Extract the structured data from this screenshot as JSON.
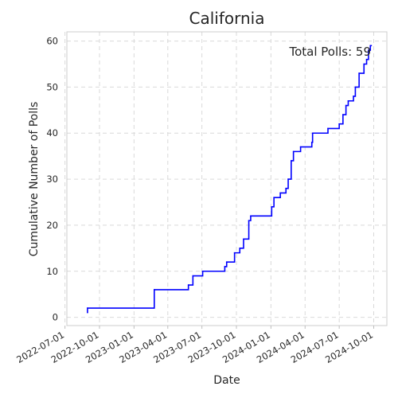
{
  "chart_data": {
    "type": "line",
    "step": true,
    "title": "California",
    "xlabel": "Date",
    "ylabel": "Cumulative Number of Polls",
    "annotation": "Total Polls: 59",
    "x_ticks": [
      "2022-07-01",
      "2022-10-01",
      "2023-01-01",
      "2023-04-01",
      "2023-07-01",
      "2023-10-01",
      "2024-01-01",
      "2024-04-01",
      "2024-07-01",
      "2024-10-01"
    ],
    "y_ticks": [
      0,
      10,
      20,
      30,
      40,
      50,
      60
    ],
    "xlim": [
      "2022-07-06",
      "2024-11-05"
    ],
    "ylim": [
      -1.8,
      62
    ],
    "grid": true,
    "line_color": "#0000ff",
    "series": [
      {
        "points": [
          [
            "2022-08-30",
            1
          ],
          [
            "2022-08-30",
            2
          ],
          [
            "2023-02-24",
            6
          ],
          [
            "2023-05-26",
            7
          ],
          [
            "2023-06-07",
            9
          ],
          [
            "2023-07-03",
            10
          ],
          [
            "2023-08-31",
            11
          ],
          [
            "2023-09-05",
            12
          ],
          [
            "2023-09-26",
            14
          ],
          [
            "2023-10-10",
            15
          ],
          [
            "2023-10-20",
            17
          ],
          [
            "2023-11-03",
            21
          ],
          [
            "2023-11-08",
            22
          ],
          [
            "2024-01-03",
            24
          ],
          [
            "2024-01-09",
            26
          ],
          [
            "2024-01-26",
            27
          ],
          [
            "2024-02-10",
            28
          ],
          [
            "2024-02-16",
            30
          ],
          [
            "2024-02-24",
            34
          ],
          [
            "2024-03-01",
            36
          ],
          [
            "2024-03-20",
            37
          ],
          [
            "2024-04-19",
            38
          ],
          [
            "2024-04-21",
            40
          ],
          [
            "2024-06-01",
            41
          ],
          [
            "2024-07-01",
            42
          ],
          [
            "2024-07-11",
            44
          ],
          [
            "2024-07-19",
            46
          ],
          [
            "2024-07-25",
            47
          ],
          [
            "2024-08-08",
            48
          ],
          [
            "2024-08-13",
            50
          ],
          [
            "2024-08-23",
            53
          ],
          [
            "2024-09-05",
            55
          ],
          [
            "2024-09-12",
            56
          ],
          [
            "2024-09-17",
            58
          ],
          [
            "2024-09-22",
            59
          ]
        ],
        "end": "2024-09-26"
      }
    ]
  }
}
